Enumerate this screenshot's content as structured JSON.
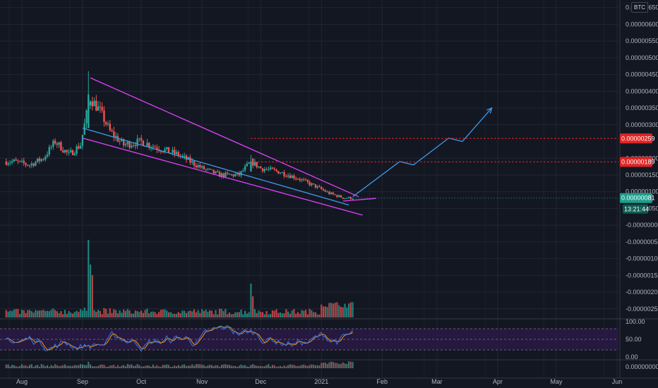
{
  "currency_button": "BTC",
  "colors": {
    "background": "#131722",
    "grid": "#232632",
    "up": "#26a69a",
    "down": "#ef5350",
    "pattern": "#e040fb",
    "trendline": "#3d9be9",
    "level": "#ff2222",
    "stoch_k": "#2f7bf0",
    "stoch_d": "#ff9800",
    "stoch_band": "#2a1a45"
  },
  "chart_data": [
    {
      "type": "candlestick",
      "pane": "price",
      "title": "",
      "time_labels": [
        "Aug",
        "Sep",
        "Oct",
        "Nov",
        "Dec",
        "2021",
        "Feb",
        "Mar",
        "Apr",
        "May",
        "Jun"
      ],
      "price_axis_ticks": [
        "0.00000650",
        "0.00000600",
        "0.00000550",
        "0.00000500",
        "0.00000450",
        "0.00000400",
        "0.00000350",
        "0.00000300",
        "0.00000200",
        "0.00000150",
        "0.00000100",
        "0.00000050",
        "-0.00000000",
        "-0.00000050",
        "-0.00000100",
        "-0.00000150",
        "-0.00000200",
        "-0.00000250"
      ],
      "ylim": [
        -2.8e-06,
        6.6e-06
      ],
      "approx_close_series": {
        "dates": [
          "2020-07-28",
          "2020-08-05",
          "2020-08-12",
          "2020-08-18",
          "2020-08-25",
          "2020-08-31",
          "2020-09-03",
          "2020-09-05",
          "2020-09-10",
          "2020-09-15",
          "2020-09-22",
          "2020-10-01",
          "2020-10-10",
          "2020-10-20",
          "2020-11-01",
          "2020-11-10",
          "2020-11-20",
          "2020-11-26",
          "2020-12-01",
          "2020-12-10",
          "2020-12-20",
          "2020-12-31",
          "2021-01-05",
          "2021-01-12",
          "2021-01-17"
        ],
        "values": [
          1.9e-06,
          1.8e-06,
          2e-06,
          2.5e-06,
          2.1e-06,
          2.4e-06,
          3.3e-06,
          3.8e-06,
          3.4e-06,
          2.8e-06,
          2.4e-06,
          2.5e-06,
          2.3e-06,
          2.1e-06,
          1.7e-06,
          1.5e-06,
          1.5e-06,
          1.9e-06,
          1.7e-06,
          1.6e-06,
          1.4e-06,
          1.1e-06,
          9.5e-07,
          8.2e-07,
          8.1e-07
        ]
      },
      "horizontal_levels": [
        {
          "value": "0.00000259",
          "style": "dotted"
        },
        {
          "value": "0.00000189",
          "style": "dotted"
        }
      ],
      "current_price": "0.00000081",
      "countdown": "13:21:44",
      "pattern": "falling wedge",
      "projection_path": {
        "dates": [
          "2021-01-17",
          "2021-02-10",
          "2021-02-17",
          "2021-03-07",
          "2021-03-14",
          "2021-03-29"
        ],
        "values": [
          8.5e-07,
          1.9e-06,
          1.8e-06,
          2.6e-06,
          2.5e-06,
          3.5e-06
        ]
      }
    },
    {
      "type": "bar",
      "pane": "volume",
      "description": "volume histogram, peak near early September and late November"
    },
    {
      "type": "line",
      "pane": "oscillator",
      "ticks": [
        "100.00",
        "50.00",
        "0.00"
      ],
      "band": [
        20,
        80
      ],
      "series": [
        {
          "color": "#2f7bf0"
        },
        {
          "color": "#ff9800"
        }
      ]
    },
    {
      "type": "bar",
      "pane": "lower",
      "ticks": [
        "0.00000000"
      ]
    }
  ]
}
